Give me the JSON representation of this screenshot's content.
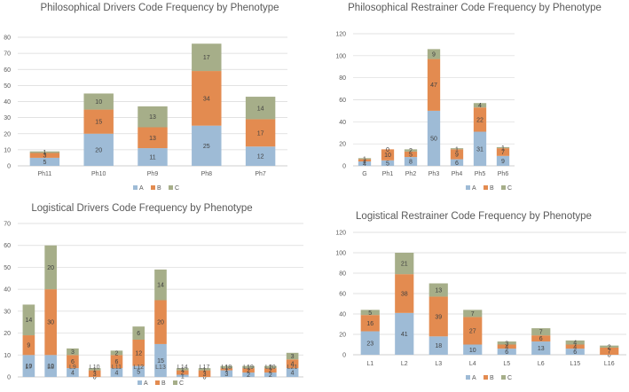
{
  "colors": {
    "A": "#9ebbd6",
    "B": "#e38b50",
    "C": "#a6ae89",
    "grid": "#d9d9d9",
    "axis": "#bfbfbf"
  },
  "chart_data": [
    {
      "type": "bar",
      "stacked": true,
      "title": "Philosophical Drivers Code Frequency by Phenotype",
      "categories": [
        "Ph11",
        "Ph10",
        "Ph9",
        "Ph8",
        "Ph7"
      ],
      "ylim": [
        0,
        80
      ],
      "yticks": [
        0,
        10,
        20,
        30,
        40,
        50,
        60,
        70,
        80
      ],
      "legend": [
        "A",
        "B",
        "C"
      ],
      "series": [
        {
          "name": "A",
          "values": [
            5,
            20,
            11,
            25,
            12
          ]
        },
        {
          "name": "B",
          "values": [
            3,
            15,
            13,
            34,
            17
          ]
        },
        {
          "name": "C",
          "values": [
            1,
            10,
            13,
            17,
            14
          ]
        }
      ]
    },
    {
      "type": "bar",
      "stacked": true,
      "title": "Philosophical Restrainer Code Frequency by Phenotype",
      "categories": [
        "G",
        "Ph1",
        "Ph2",
        "Ph3",
        "Ph4",
        "Ph5",
        "Ph6"
      ],
      "ylim": [
        0,
        120
      ],
      "yticks": [
        0,
        20,
        40,
        60,
        80,
        100,
        120
      ],
      "legend": [
        "A",
        "B",
        "C"
      ],
      "series": [
        {
          "name": "A",
          "values": [
            4,
            5,
            8,
            50,
            6,
            31,
            9
          ]
        },
        {
          "name": "B",
          "values": [
            2,
            10,
            5,
            47,
            9,
            22,
            7
          ]
        },
        {
          "name": "C",
          "values": [
            1,
            0,
            2,
            9,
            1,
            4,
            1
          ]
        }
      ]
    },
    {
      "type": "bar",
      "stacked": true,
      "title": "Logistical Drivers Code Frequency by Phenotype",
      "categories": [
        "L7",
        "L8",
        "L9",
        "L10",
        "L11",
        "L12",
        "L13",
        "L14",
        "L17",
        "L18",
        "L19",
        "L20",
        "L21"
      ],
      "ylim": [
        0,
        70
      ],
      "yticks": [
        0,
        10,
        20,
        30,
        40,
        50,
        60,
        70
      ],
      "legend": [
        "A",
        "B",
        "C"
      ],
      "series": [
        {
          "name": "A",
          "values": [
            10,
            10,
            4,
            0,
            4,
            5,
            15,
            1,
            0,
            3,
            2,
            2,
            4
          ]
        },
        {
          "name": "B",
          "values": [
            9,
            30,
            6,
            3,
            6,
            12,
            20,
            2,
            3,
            1,
            2,
            2,
            4
          ]
        },
        {
          "name": "C",
          "values": [
            14,
            20,
            3,
            1,
            2,
            6,
            14,
            1,
            1,
            1,
            1,
            1,
            3
          ]
        }
      ]
    },
    {
      "type": "bar",
      "stacked": true,
      "title": "Logistical Restrainer Code Frequency by Phenotype",
      "categories": [
        "L1",
        "L2",
        "L3",
        "L4",
        "L5",
        "L6",
        "L15",
        "L16"
      ],
      "ylim": [
        0,
        120
      ],
      "yticks": [
        0,
        20,
        40,
        60,
        80,
        100,
        120
      ],
      "legend": [
        "A",
        "B",
        "C"
      ],
      "series": [
        {
          "name": "A",
          "values": [
            23,
            41,
            18,
            10,
            6,
            13,
            6,
            0
          ]
        },
        {
          "name": "B",
          "values": [
            16,
            38,
            39,
            27,
            4,
            6,
            4,
            7
          ]
        },
        {
          "name": "C",
          "values": [
            5,
            21,
            13,
            7,
            3,
            7,
            4,
            2
          ]
        }
      ]
    }
  ]
}
